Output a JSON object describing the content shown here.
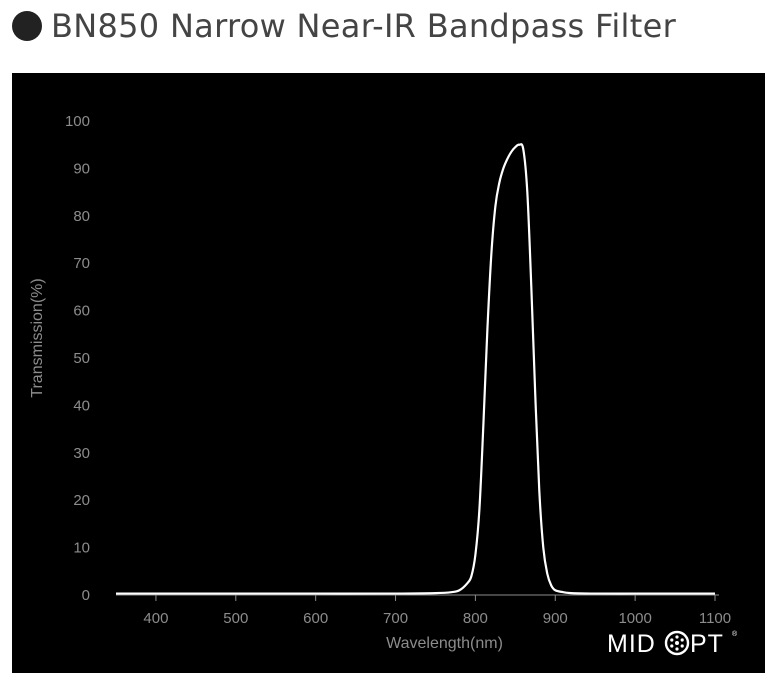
{
  "header": {
    "title": "BN850 Narrow Near-IR Bandpass Filter"
  },
  "logo": {
    "left": "MID",
    "right": "PT",
    "mark": "®"
  },
  "colors": {
    "background": "#000000",
    "curve": "#ffffff",
    "axis": "#8c8c8c",
    "title": "#444444"
  },
  "chart_data": {
    "type": "line",
    "title": "",
    "xlabel": "Wavelength(nm)",
    "ylabel": "Transmission(%)",
    "xlim": [
      350,
      1100
    ],
    "ylim": [
      0,
      100
    ],
    "xticks": [
      400,
      500,
      600,
      700,
      800,
      900,
      1000,
      1100
    ],
    "yticks": [
      0,
      10,
      20,
      30,
      40,
      50,
      60,
      70,
      80,
      90,
      100
    ],
    "grid": false,
    "series": [
      {
        "x": [
          350,
          400,
          500,
          600,
          700,
          750,
          770,
          780,
          790,
          795,
          800,
          805,
          810,
          815,
          820,
          825,
          830,
          835,
          840,
          845,
          850,
          855,
          860,
          865,
          870,
          875,
          880,
          885,
          890,
          895,
          900,
          910,
          920,
          950,
          1000,
          1050,
          1100
        ],
        "y": [
          0.3,
          0.3,
          0.3,
          0.3,
          0.3,
          0.4,
          0.6,
          1.0,
          2.5,
          4.0,
          8.5,
          18.0,
          36.0,
          56.0,
          72.0,
          82.0,
          87.0,
          90.0,
          92.0,
          93.5,
          94.5,
          95.0,
          94.0,
          85.0,
          65.0,
          42.0,
          22.0,
          10.0,
          4.5,
          2.0,
          1.0,
          0.6,
          0.4,
          0.3,
          0.3,
          0.3,
          0.3
        ]
      }
    ]
  }
}
